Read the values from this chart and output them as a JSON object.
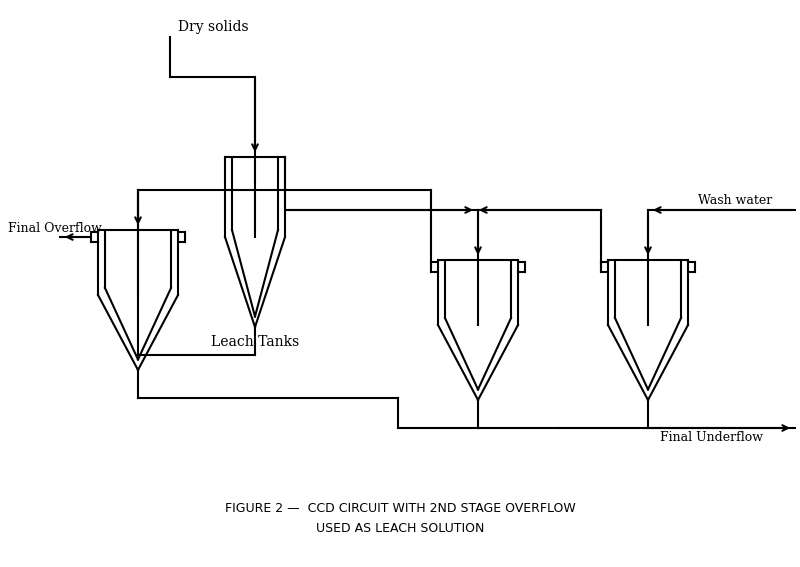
{
  "title_line1": "FIGURE 2 —  CCD CIRCUIT WITH 2ND STAGE OVERFLOW",
  "title_line2": "USED AS LEACH SOLUTION",
  "label_dry_solids": "Dry solids",
  "label_leach_tanks": "Leach Tanks",
  "label_final_overflow": "Final Overflow",
  "label_wash_water": "Wash water",
  "label_final_underflow": "Final Underflow",
  "bg_color": "#ffffff",
  "line_color": "#000000",
  "lw": 1.5,
  "figsize": [
    8.0,
    5.67
  ],
  "dpi": 100
}
